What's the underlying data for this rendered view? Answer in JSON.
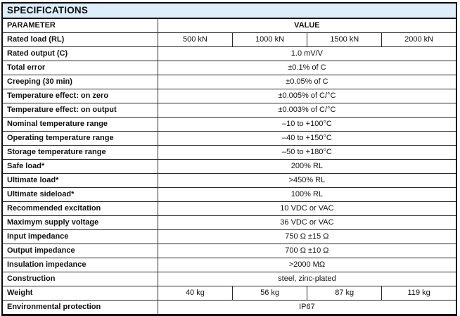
{
  "document": {
    "title": "SPECIFICATIONS",
    "colors": {
      "title_bar_bg": "#ddeefa",
      "border": "#2a2a2a",
      "outer_border": "#0a0a0a",
      "text": "#111111"
    }
  },
  "table": {
    "headers": {
      "parameter": "PARAMETER",
      "value": "VALUE"
    },
    "rows": [
      {
        "param": "Rated load (RL)",
        "values": [
          "500 kN",
          "1000 kN",
          "1500 kN",
          "2000 kN"
        ]
      },
      {
        "param": "Rated output (C)",
        "value": "1.0 mV/V"
      },
      {
        "param": "Total error",
        "value": "±0.1% of C"
      },
      {
        "param": "Creeping (30 min)",
        "value": "±0.05% of C"
      },
      {
        "param": "Temperature effect: on zero",
        "value": "±0.005% of C/°C"
      },
      {
        "param": "Temperature effect: on output",
        "value": "±0.003% of C/°C"
      },
      {
        "param": "Nominal temperature range",
        "value": "–10 to +100°C"
      },
      {
        "param": "Operating temperature range",
        "value": "–40 to +150°C"
      },
      {
        "param": "Storage temperature range",
        "value": "–50 to +180°C"
      },
      {
        "param": "Safe load*",
        "value": "200% RL"
      },
      {
        "param": "Ultimate load*",
        "value": ">450% RL"
      },
      {
        "param": "Ultimate sideload*",
        "value": "100% RL"
      },
      {
        "param": "Recommended excitation",
        "value": "10 VDC or VAC"
      },
      {
        "param": "Maximym supply voltage",
        "value": "36 VDC or VAC"
      },
      {
        "param": "Input impedance",
        "value": "750 Ω ±15 Ω"
      },
      {
        "param": "Output impedance",
        "value": "700 Ω ±10 Ω"
      },
      {
        "param": "Insulation impedance",
        "value": ">2000 MΩ"
      },
      {
        "param": "Construction",
        "value": "steel, zinc-plated"
      },
      {
        "param": "Weight",
        "values": [
          "40 kg",
          "56 kg",
          "87 kg",
          "119 kg"
        ]
      },
      {
        "param": "Environmental protection",
        "value": "IP67"
      }
    ]
  }
}
